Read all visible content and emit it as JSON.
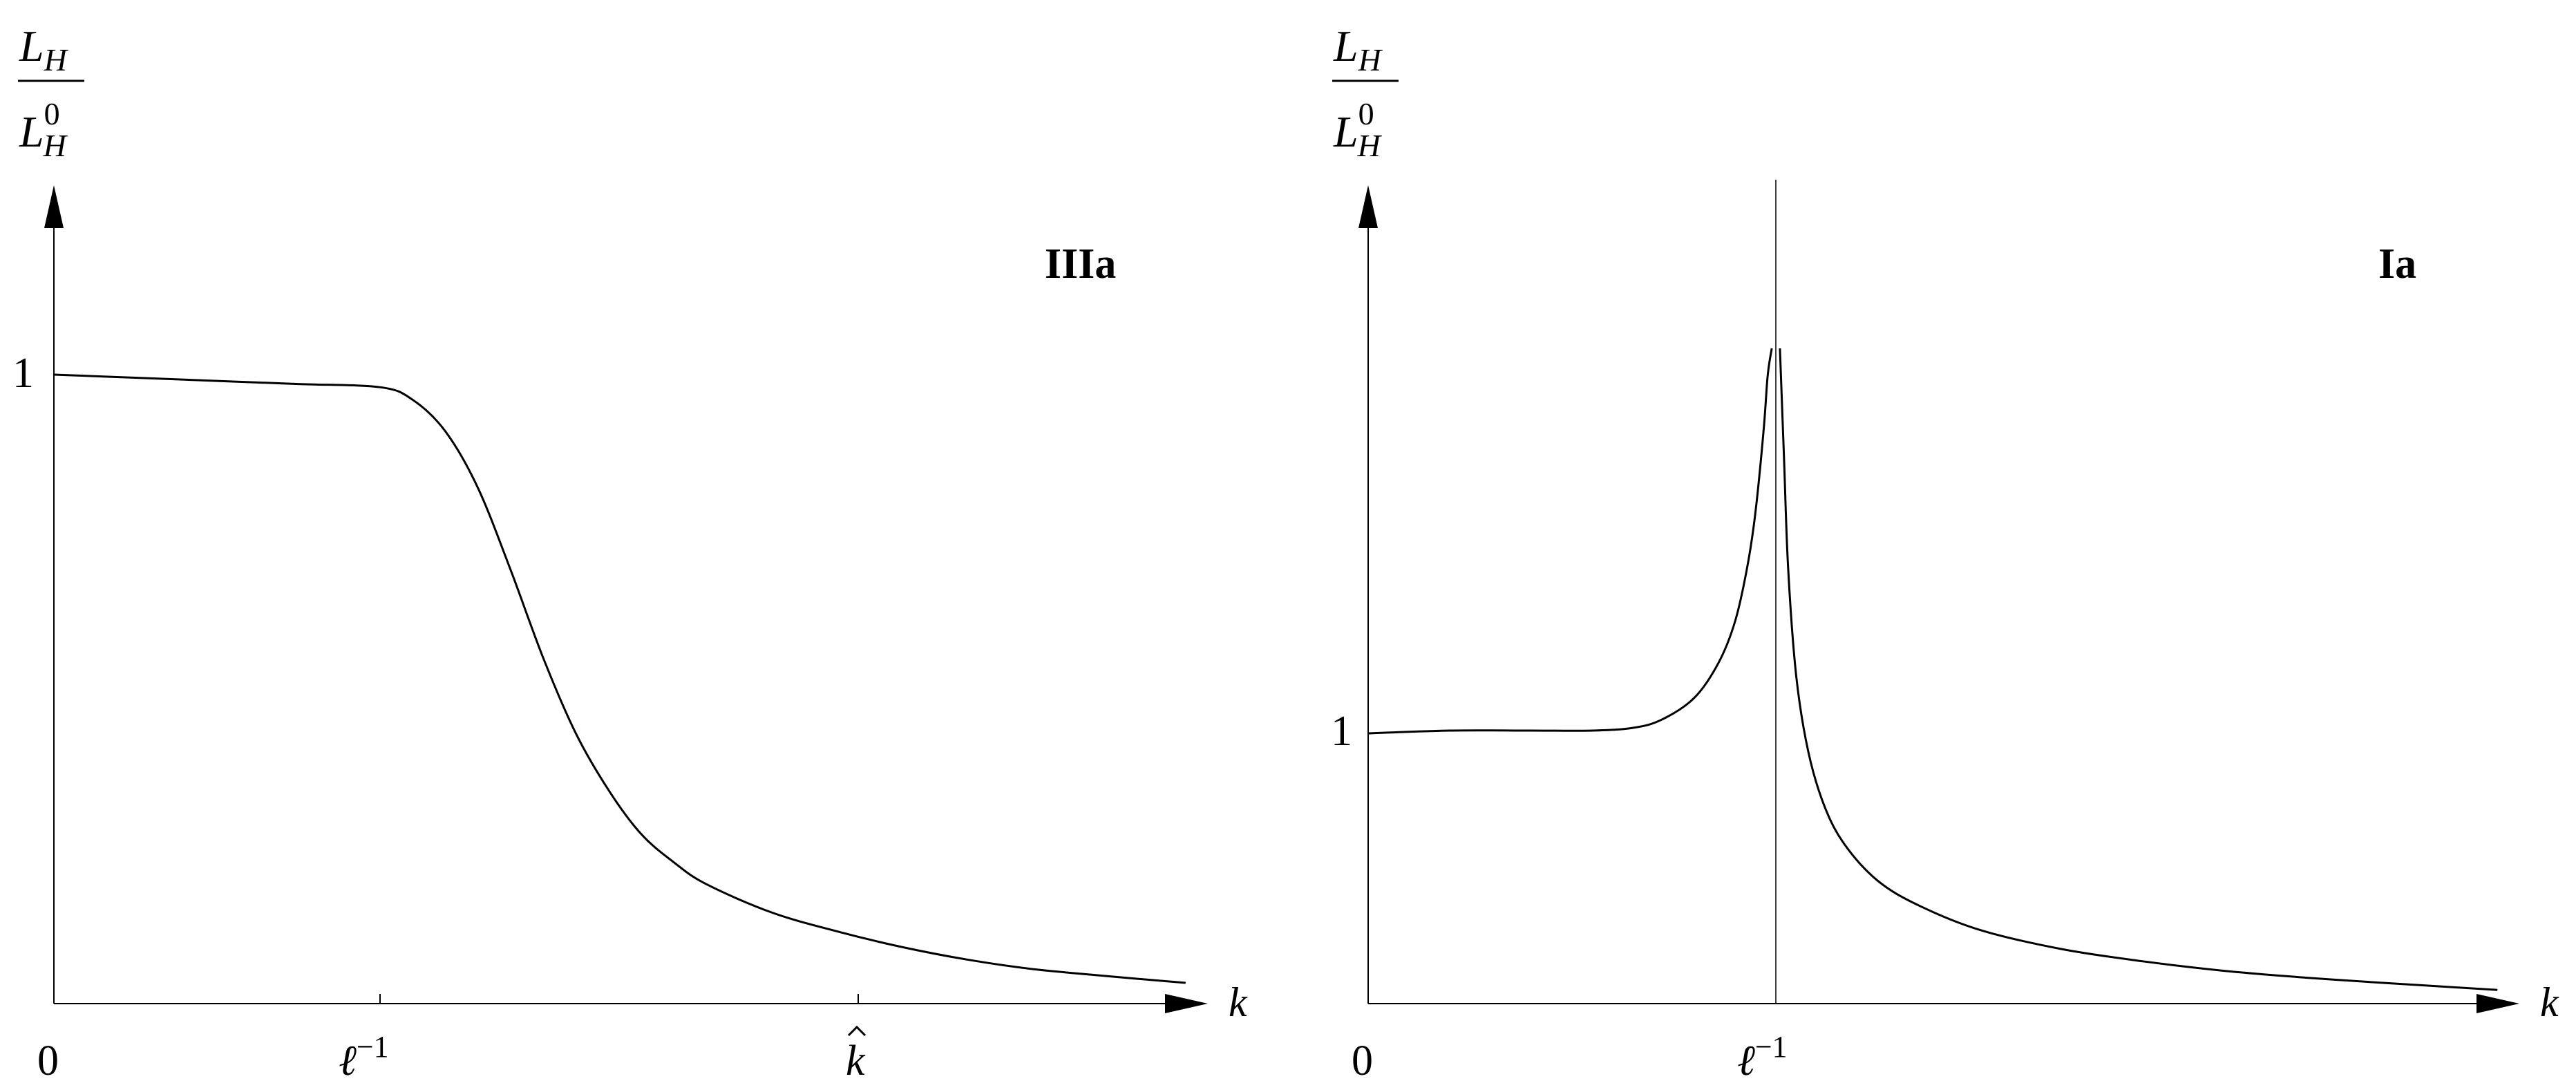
{
  "chart_data": [
    {
      "type": "line",
      "panel_label": "IIIa",
      "ylabel": {
        "numerator": "L",
        "numerator_sub": "H",
        "denominator": "L",
        "denominator_sup": "0",
        "denominator_sub": "H"
      },
      "xlabel": "k",
      "xlim": [
        0,
        3.5
      ],
      "ylim": [
        0,
        1.3
      ],
      "y_ticks": [
        {
          "value": 1,
          "label": "1"
        }
      ],
      "x_ticks": [
        {
          "value": 0,
          "label": "0",
          "mark": false
        },
        {
          "value": 1,
          "label": "ℓ",
          "sup": "−1",
          "mark": true
        },
        {
          "value": 2.5,
          "label": "k",
          "hat": true,
          "mark": true
        }
      ],
      "series": [
        {
          "x": [
            0,
            0.25,
            0.5,
            0.75,
            1.0,
            1.1,
            1.2,
            1.3,
            1.4,
            1.5,
            1.6,
            1.7,
            1.8,
            1.9,
            2.0,
            2.2,
            2.4,
            2.6,
            2.8,
            3.0,
            3.2,
            3.47
          ],
          "y": [
            1.0,
            0.995,
            0.99,
            0.985,
            0.98,
            0.96,
            0.91,
            0.82,
            0.69,
            0.55,
            0.43,
            0.34,
            0.27,
            0.225,
            0.19,
            0.145,
            0.115,
            0.09,
            0.07,
            0.055,
            0.045,
            0.033
          ]
        }
      ]
    },
    {
      "type": "line",
      "panel_label": "Ia",
      "ylabel": {
        "numerator": "L",
        "numerator_sub": "H",
        "denominator": "L",
        "denominator_sup": "0",
        "denominator_sub": "H"
      },
      "xlabel": "k",
      "xlim": [
        0,
        2.9
      ],
      "ylim": [
        0,
        2.35
      ],
      "y_ticks": [
        {
          "value": 1,
          "label": "1"
        }
      ],
      "x_ticks": [
        {
          "value": 0,
          "label": "0",
          "mark": false
        },
        {
          "value": 1,
          "label": "ℓ",
          "sup": "−1",
          "mark": true
        }
      ],
      "vline": 1,
      "series": [
        {
          "x": [
            0,
            0.2,
            0.4,
            0.55,
            0.65,
            0.72,
            0.8,
            0.86,
            0.9,
            0.93,
            0.95,
            0.97,
            0.98,
            0.99
          ],
          "y": [
            0.99,
            1.0,
            1.0,
            1.0,
            1.01,
            1.04,
            1.12,
            1.25,
            1.4,
            1.6,
            1.8,
            2.1,
            2.3,
            2.4
          ]
        },
        {
          "x": [
            1.01,
            1.02,
            1.03,
            1.05,
            1.08,
            1.12,
            1.17,
            1.25,
            1.35,
            1.5,
            1.7,
            1.9,
            2.1,
            2.3,
            2.5,
            2.77
          ],
          "y": [
            2.4,
            2.0,
            1.6,
            1.2,
            0.92,
            0.72,
            0.58,
            0.45,
            0.36,
            0.27,
            0.2,
            0.155,
            0.12,
            0.095,
            0.075,
            0.05
          ]
        }
      ]
    }
  ]
}
